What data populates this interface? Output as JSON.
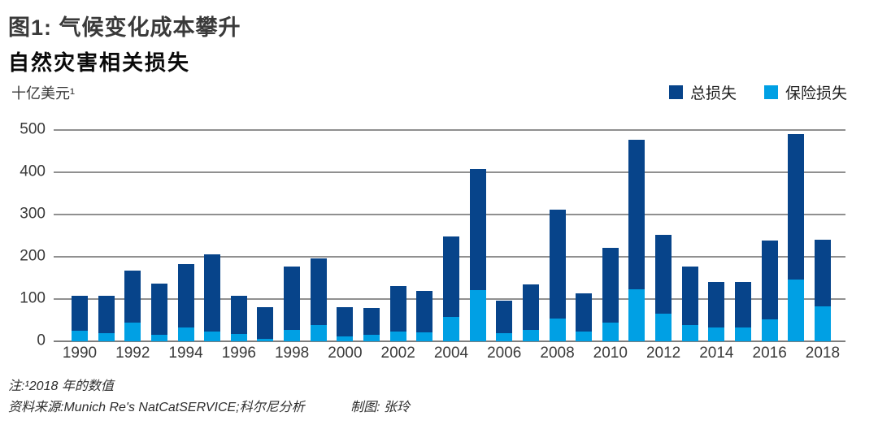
{
  "header": {
    "title": "图1: 气候变化成本攀升",
    "subtitle": "自然灾害相关损失",
    "unit": "十亿美元¹"
  },
  "legend": {
    "items": [
      {
        "label": "总损失",
        "color": "#07448a"
      },
      {
        "label": "保险损失",
        "color": "#00a0e4"
      }
    ]
  },
  "chart_data": {
    "type": "bar",
    "stacked_overlay": true,
    "title": "自然灾害相关损失",
    "xlabel": "",
    "ylabel": "十亿美元",
    "ylim": [
      0,
      500
    ],
    "yticks": [
      500,
      400,
      300,
      200,
      100,
      0
    ],
    "grid": true,
    "legend_position": "top-right",
    "xtick_step": 2,
    "categories": [
      1990,
      1991,
      1992,
      1993,
      1994,
      1995,
      1996,
      1997,
      1998,
      1999,
      2000,
      2001,
      2002,
      2003,
      2004,
      2005,
      2006,
      2007,
      2008,
      2009,
      2010,
      2011,
      2012,
      2013,
      2014,
      2015,
      2016,
      2017,
      2018
    ],
    "series": [
      {
        "name": "总损失",
        "color": "#07448a",
        "values": [
          107,
          108,
          167,
          136,
          182,
          206,
          108,
          80,
          177,
          196,
          80,
          78,
          130,
          120,
          249,
          408,
          97,
          135,
          311,
          114,
          221,
          476,
          252,
          177,
          140,
          140,
          239,
          490,
          240
        ]
      },
      {
        "name": "保险损失",
        "color": "#00a0e4",
        "values": [
          25,
          20,
          45,
          15,
          33,
          23,
          17,
          6,
          27,
          38,
          11,
          16,
          23,
          22,
          58,
          122,
          19,
          26,
          53,
          23,
          45,
          124,
          65,
          38,
          32,
          32,
          51,
          146,
          82
        ]
      }
    ]
  },
  "footer": {
    "note": "注:¹2018 年的数值",
    "source": "资料来源:Munich Re's NatCatSERVICE;科尔尼分析",
    "credit": "制图: 张玲"
  }
}
